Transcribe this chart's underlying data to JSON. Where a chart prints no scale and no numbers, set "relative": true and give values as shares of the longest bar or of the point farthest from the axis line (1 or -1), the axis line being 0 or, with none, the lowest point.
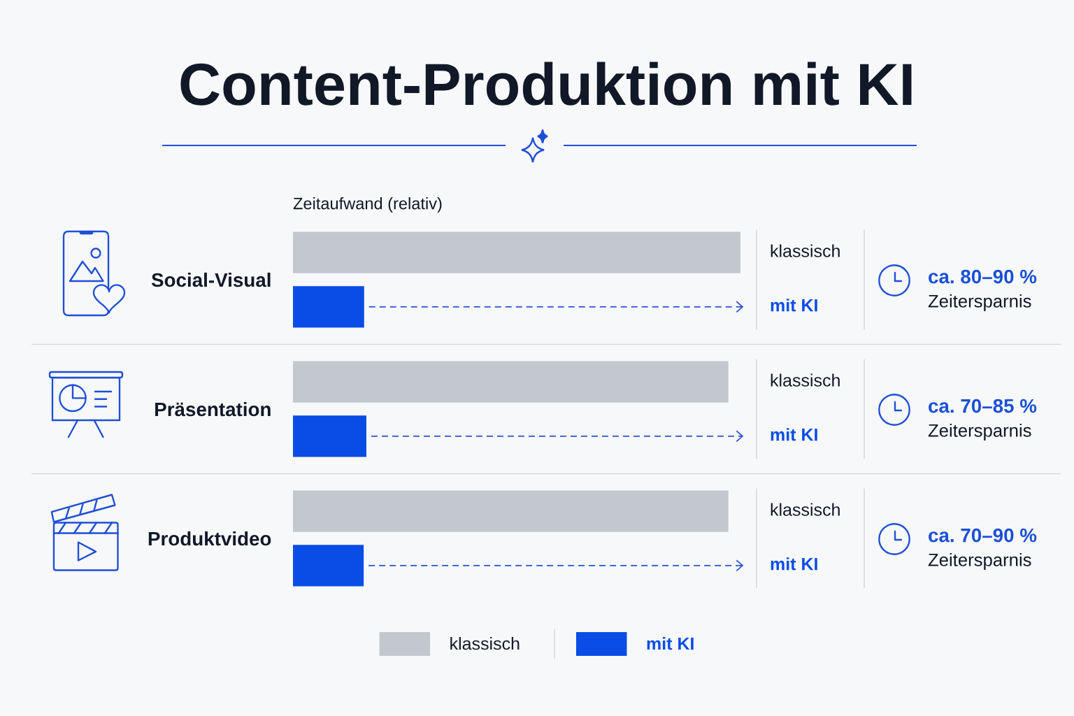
{
  "chart_data": {
    "type": "bar",
    "orientation": "horizontal",
    "relative": true,
    "title": "Content-Produktion mit KI",
    "xlabel": "Zeitaufwand (relativ)",
    "categories": [
      "Social-Visual",
      "Präsentation",
      "Produktvideo"
    ],
    "series": [
      {
        "name": "klassisch",
        "color": "#c3c8ce",
        "values": [
          1,
          0.973,
          0.973
        ]
      },
      {
        "name": "mit KI",
        "color": "#0a4de6",
        "values": [
          0.159,
          0.164,
          0.158
        ]
      }
    ],
    "annotations": [
      "ca. 80–90 %",
      "Zeitersparnis",
      "ca. 70–85 %",
      "Zeitersparnis",
      "ca. 70–90 %",
      "Zeitersparnis"
    ],
    "legend": "bottom",
    "tick_labels": "y"
  }
}
